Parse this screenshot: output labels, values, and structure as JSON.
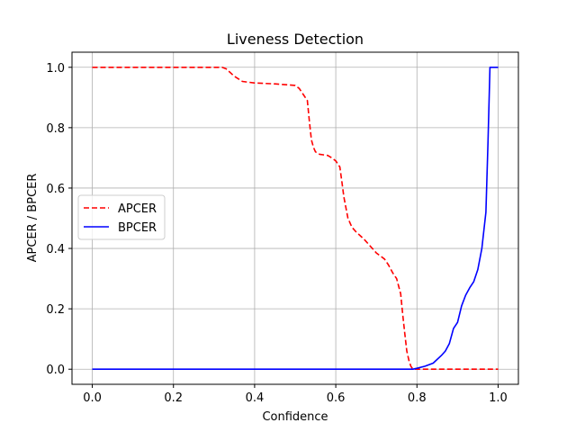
{
  "chart_data": {
    "type": "line",
    "title": "Liveness Detection",
    "xlabel": "Confidence",
    "ylabel": "APCER / BPCER",
    "xlim": [
      -0.05,
      1.05
    ],
    "ylim": [
      -0.05,
      1.05
    ],
    "xticks": [
      0.0,
      0.2,
      0.4,
      0.6,
      0.8,
      1.0
    ],
    "xtick_labels": [
      "0.0",
      "0.2",
      "0.4",
      "0.6",
      "0.8",
      "1.0"
    ],
    "yticks": [
      0.0,
      0.2,
      0.4,
      0.6,
      0.8,
      1.0
    ],
    "ytick_labels": [
      "0.0",
      "0.2",
      "0.4",
      "0.6",
      "0.8",
      "1.0"
    ],
    "grid": true,
    "legend_position": "center-left",
    "series": [
      {
        "name": "APCER",
        "color": "#ff0000",
        "style": "dashed",
        "x": [
          0.0,
          0.32,
          0.33,
          0.35,
          0.37,
          0.4,
          0.45,
          0.5,
          0.51,
          0.52,
          0.53,
          0.535,
          0.54,
          0.545,
          0.55,
          0.56,
          0.58,
          0.59,
          0.6,
          0.61,
          0.615,
          0.62,
          0.63,
          0.64,
          0.65,
          0.67,
          0.69,
          0.7,
          0.72,
          0.73,
          0.74,
          0.75,
          0.76,
          0.765,
          0.77,
          0.775,
          0.78,
          0.785,
          0.79,
          0.8,
          0.85,
          0.9,
          0.95,
          1.0
        ],
        "y": [
          1.0,
          1.0,
          0.995,
          0.97,
          0.953,
          0.948,
          0.945,
          0.94,
          0.93,
          0.91,
          0.89,
          0.82,
          0.76,
          0.735,
          0.72,
          0.712,
          0.708,
          0.7,
          0.69,
          0.67,
          0.62,
          0.57,
          0.5,
          0.47,
          0.455,
          0.43,
          0.4,
          0.385,
          0.365,
          0.345,
          0.32,
          0.3,
          0.25,
          0.18,
          0.12,
          0.06,
          0.03,
          0.01,
          0.0,
          0.0,
          0.0,
          0.0,
          0.0,
          0.0
        ]
      },
      {
        "name": "BPCER",
        "color": "#0000ff",
        "style": "solid",
        "x": [
          0.0,
          0.79,
          0.8,
          0.82,
          0.84,
          0.86,
          0.87,
          0.88,
          0.89,
          0.9,
          0.91,
          0.92,
          0.93,
          0.94,
          0.95,
          0.96,
          0.97,
          0.975,
          0.98,
          0.99,
          1.0
        ],
        "y": [
          0.0,
          0.0,
          0.003,
          0.01,
          0.02,
          0.045,
          0.06,
          0.085,
          0.135,
          0.155,
          0.21,
          0.245,
          0.27,
          0.29,
          0.33,
          0.4,
          0.52,
          0.75,
          1.0,
          1.0,
          1.0
        ]
      }
    ]
  }
}
